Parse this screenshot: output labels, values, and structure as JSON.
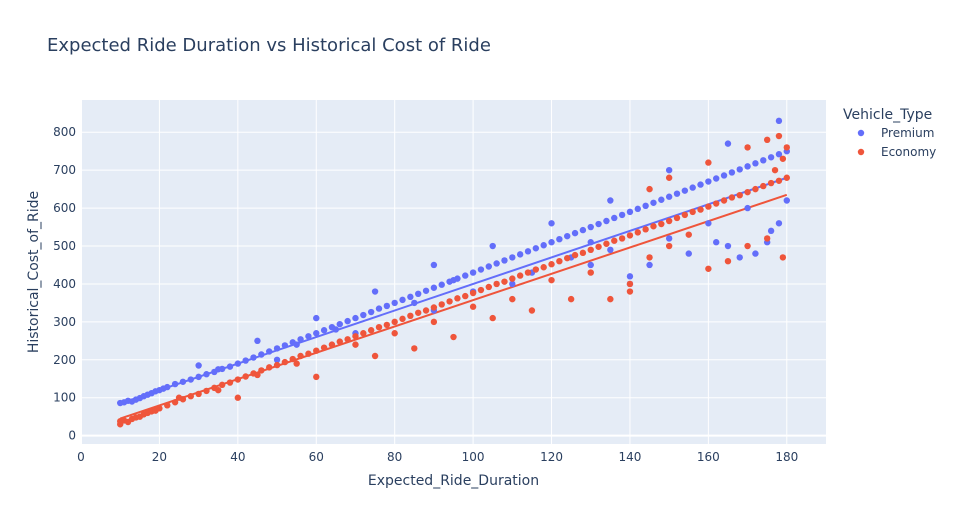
{
  "chart_data": {
    "type": "scatter",
    "title": "Expected Ride Duration vs Historical Cost of Ride",
    "xlabel": "Expected_Ride_Duration",
    "ylabel": "Historical_Cost_of_Ride",
    "xlim": [
      0,
      190
    ],
    "ylim": [
      -22,
      885
    ],
    "x_ticks": [
      0,
      20,
      40,
      60,
      80,
      100,
      120,
      140,
      160,
      180
    ],
    "y_ticks": [
      0,
      100,
      200,
      300,
      400,
      500,
      600,
      700,
      800
    ],
    "grid": true,
    "legend": {
      "title": "Vehicle_Type",
      "placement": "top-right"
    },
    "series": [
      {
        "name": "Premium",
        "color": "#636efa",
        "trendline": {
          "x": [
            10,
            180
          ],
          "y": [
            85,
            680
          ]
        },
        "points": [
          [
            10,
            86
          ],
          [
            11,
            88
          ],
          [
            12,
            92
          ],
          [
            13,
            90
          ],
          [
            14,
            95
          ],
          [
            15,
            99
          ],
          [
            16,
            104
          ],
          [
            17,
            108
          ],
          [
            18,
            112
          ],
          [
            19,
            117
          ],
          [
            20,
            120
          ],
          [
            21,
            124
          ],
          [
            22,
            128
          ],
          [
            24,
            136
          ],
          [
            26,
            142
          ],
          [
            28,
            148
          ],
          [
            30,
            155
          ],
          [
            32,
            162
          ],
          [
            34,
            168
          ],
          [
            36,
            176
          ],
          [
            38,
            182
          ],
          [
            40,
            190
          ],
          [
            42,
            198
          ],
          [
            44,
            206
          ],
          [
            46,
            214
          ],
          [
            48,
            222
          ],
          [
            50,
            230
          ],
          [
            52,
            238
          ],
          [
            54,
            246
          ],
          [
            56,
            254
          ],
          [
            58,
            262
          ],
          [
            60,
            270
          ],
          [
            62,
            278
          ],
          [
            64,
            286
          ],
          [
            66,
            294
          ],
          [
            68,
            302
          ],
          [
            70,
            310
          ],
          [
            72,
            318
          ],
          [
            74,
            326
          ],
          [
            76,
            335
          ],
          [
            78,
            342
          ],
          [
            80,
            350
          ],
          [
            82,
            358
          ],
          [
            84,
            366
          ],
          [
            86,
            374
          ],
          [
            88,
            382
          ],
          [
            90,
            390
          ],
          [
            92,
            398
          ],
          [
            94,
            406
          ],
          [
            96,
            414
          ],
          [
            98,
            422
          ],
          [
            100,
            430
          ],
          [
            102,
            438
          ],
          [
            104,
            446
          ],
          [
            106,
            454
          ],
          [
            108,
            462
          ],
          [
            110,
            470
          ],
          [
            112,
            478
          ],
          [
            114,
            486
          ],
          [
            116,
            494
          ],
          [
            118,
            502
          ],
          [
            120,
            510
          ],
          [
            122,
            518
          ],
          [
            124,
            526
          ],
          [
            126,
            534
          ],
          [
            128,
            542
          ],
          [
            130,
            550
          ],
          [
            132,
            558
          ],
          [
            134,
            566
          ],
          [
            136,
            574
          ],
          [
            138,
            582
          ],
          [
            140,
            590
          ],
          [
            142,
            598
          ],
          [
            144,
            606
          ],
          [
            146,
            614
          ],
          [
            148,
            622
          ],
          [
            150,
            630
          ],
          [
            152,
            638
          ],
          [
            154,
            646
          ],
          [
            156,
            654
          ],
          [
            158,
            662
          ],
          [
            160,
            670
          ],
          [
            162,
            678
          ],
          [
            164,
            686
          ],
          [
            166,
            694
          ],
          [
            168,
            702
          ],
          [
            170,
            710
          ],
          [
            172,
            718
          ],
          [
            174,
            726
          ],
          [
            176,
            734
          ],
          [
            178,
            742
          ],
          [
            180,
            750
          ],
          [
            30,
            185
          ],
          [
            45,
            250
          ],
          [
            60,
            310
          ],
          [
            75,
            380
          ],
          [
            90,
            450
          ],
          [
            105,
            500
          ],
          [
            120,
            560
          ],
          [
            135,
            620
          ],
          [
            150,
            700
          ],
          [
            165,
            770
          ],
          [
            178,
            830
          ],
          [
            50,
            200
          ],
          [
            70,
            270
          ],
          [
            90,
            330
          ],
          [
            110,
            400
          ],
          [
            130,
            450
          ],
          [
            140,
            420
          ],
          [
            150,
            520
          ],
          [
            160,
            560
          ],
          [
            170,
            600
          ],
          [
            180,
            620
          ],
          [
            140,
            400
          ],
          [
            145,
            450
          ],
          [
            155,
            480
          ],
          [
            165,
            500
          ],
          [
            175,
            510
          ],
          [
            178,
            560
          ],
          [
            176,
            540
          ],
          [
            172,
            480
          ],
          [
            168,
            470
          ],
          [
            162,
            510
          ],
          [
            125,
            470
          ],
          [
            130,
            510
          ],
          [
            135,
            490
          ],
          [
            115,
            430
          ],
          [
            100,
            380
          ],
          [
            95,
            410
          ],
          [
            85,
            350
          ],
          [
            65,
            280
          ],
          [
            55,
            240
          ],
          [
            35,
            175
          ]
        ]
      },
      {
        "name": "Economy",
        "color": "#ef553b",
        "trendline": {
          "x": [
            10,
            180
          ],
          "y": [
            45,
            635
          ]
        },
        "points": [
          [
            10,
            30
          ],
          [
            10,
            38
          ],
          [
            11,
            40
          ],
          [
            12,
            36
          ],
          [
            13,
            44
          ],
          [
            14,
            48
          ],
          [
            15,
            50
          ],
          [
            16,
            56
          ],
          [
            17,
            60
          ],
          [
            18,
            64
          ],
          [
            19,
            66
          ],
          [
            20,
            72
          ],
          [
            22,
            80
          ],
          [
            24,
            88
          ],
          [
            26,
            96
          ],
          [
            28,
            104
          ],
          [
            30,
            110
          ],
          [
            32,
            118
          ],
          [
            34,
            126
          ],
          [
            36,
            134
          ],
          [
            38,
            140
          ],
          [
            40,
            148
          ],
          [
            42,
            156
          ],
          [
            44,
            164
          ],
          [
            46,
            172
          ],
          [
            48,
            180
          ],
          [
            50,
            186
          ],
          [
            52,
            194
          ],
          [
            54,
            202
          ],
          [
            56,
            210
          ],
          [
            58,
            216
          ],
          [
            60,
            224
          ],
          [
            62,
            232
          ],
          [
            64,
            240
          ],
          [
            66,
            248
          ],
          [
            68,
            254
          ],
          [
            70,
            262
          ],
          [
            72,
            270
          ],
          [
            74,
            278
          ],
          [
            76,
            286
          ],
          [
            78,
            292
          ],
          [
            80,
            300
          ],
          [
            82,
            308
          ],
          [
            84,
            316
          ],
          [
            86,
            324
          ],
          [
            88,
            330
          ],
          [
            90,
            338
          ],
          [
            92,
            346
          ],
          [
            94,
            354
          ],
          [
            96,
            362
          ],
          [
            98,
            368
          ],
          [
            100,
            376
          ],
          [
            102,
            384
          ],
          [
            104,
            392
          ],
          [
            106,
            400
          ],
          [
            108,
            406
          ],
          [
            110,
            414
          ],
          [
            112,
            422
          ],
          [
            114,
            430
          ],
          [
            116,
            438
          ],
          [
            118,
            444
          ],
          [
            120,
            452
          ],
          [
            122,
            460
          ],
          [
            124,
            468
          ],
          [
            126,
            476
          ],
          [
            128,
            482
          ],
          [
            130,
            490
          ],
          [
            132,
            498
          ],
          [
            134,
            506
          ],
          [
            136,
            514
          ],
          [
            138,
            520
          ],
          [
            140,
            528
          ],
          [
            142,
            536
          ],
          [
            144,
            544
          ],
          [
            146,
            552
          ],
          [
            148,
            558
          ],
          [
            150,
            566
          ],
          [
            152,
            574
          ],
          [
            154,
            582
          ],
          [
            156,
            590
          ],
          [
            158,
            596
          ],
          [
            160,
            604
          ],
          [
            162,
            612
          ],
          [
            164,
            620
          ],
          [
            166,
            628
          ],
          [
            168,
            634
          ],
          [
            170,
            642
          ],
          [
            172,
            650
          ],
          [
            174,
            658
          ],
          [
            176,
            666
          ],
          [
            178,
            672
          ],
          [
            180,
            680
          ],
          [
            40,
            100
          ],
          [
            60,
            155
          ],
          [
            75,
            210
          ],
          [
            85,
            230
          ],
          [
            95,
            260
          ],
          [
            105,
            310
          ],
          [
            115,
            330
          ],
          [
            125,
            360
          ],
          [
            135,
            360
          ],
          [
            140,
            400
          ],
          [
            145,
            650
          ],
          [
            150,
            680
          ],
          [
            160,
            720
          ],
          [
            170,
            760
          ],
          [
            175,
            780
          ],
          [
            178,
            790
          ],
          [
            180,
            760
          ],
          [
            179,
            730
          ],
          [
            177,
            700
          ],
          [
            160,
            440
          ],
          [
            165,
            460
          ],
          [
            170,
            500
          ],
          [
            175,
            520
          ],
          [
            179,
            470
          ],
          [
            150,
            500
          ],
          [
            155,
            530
          ],
          [
            145,
            470
          ],
          [
            140,
            380
          ],
          [
            130,
            430
          ],
          [
            120,
            410
          ],
          [
            110,
            360
          ],
          [
            100,
            340
          ],
          [
            90,
            300
          ],
          [
            80,
            270
          ],
          [
            70,
            240
          ],
          [
            55,
            190
          ],
          [
            45,
            160
          ],
          [
            35,
            120
          ],
          [
            25,
            100
          ]
        ]
      }
    ]
  }
}
